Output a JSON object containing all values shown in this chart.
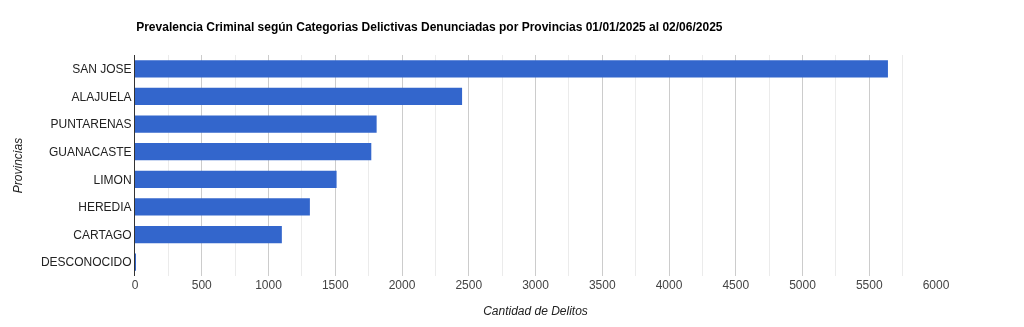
{
  "chart_data": {
    "type": "bar",
    "orientation": "horizontal",
    "title": "Prevalencia Criminal según Categorias Delictivas Denunciadas por Provincias 01/01/2025 al 02/06/2025",
    "xlabel": "Cantidad de Delitos",
    "ylabel": "Provincias",
    "categories": [
      "SAN JOSE",
      "ALAJUELA",
      "PUNTARENAS",
      "GUANACASTE",
      "LIMON",
      "HEREDIA",
      "CARTAGO",
      "DESCONOCIDO"
    ],
    "values": [
      5640,
      2450,
      1810,
      1770,
      1510,
      1310,
      1100,
      5
    ],
    "color": "#3366cc",
    "xlim": [
      0,
      6000
    ],
    "xticks": [
      0,
      500,
      1000,
      1500,
      2000,
      2500,
      3000,
      3500,
      4000,
      4500,
      5000,
      5500,
      6000
    ],
    "grid": "x"
  }
}
